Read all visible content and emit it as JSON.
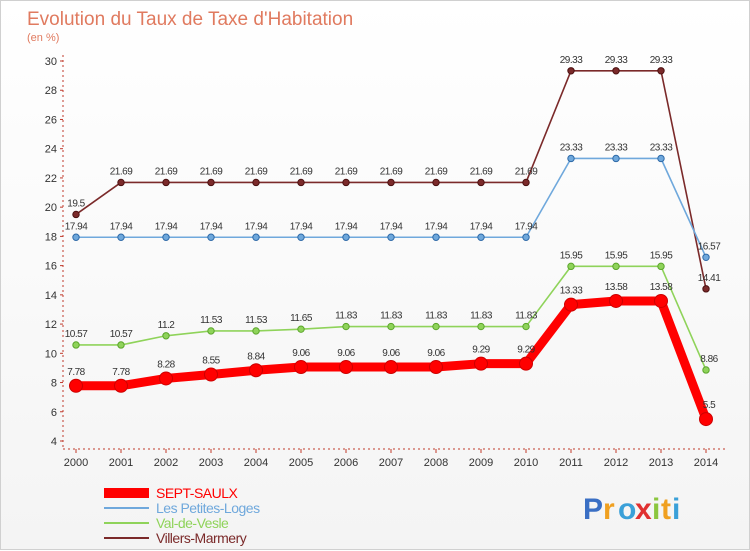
{
  "chart_data": {
    "type": "line",
    "title": "Evolution du Taux de Taxe d'Habitation",
    "subtitle": "(en %)",
    "x": [
      2000,
      2001,
      2002,
      2003,
      2004,
      2005,
      2006,
      2007,
      2008,
      2009,
      2010,
      2011,
      2012,
      2013,
      2014
    ],
    "ylim": [
      4,
      30
    ],
    "yticks": [
      4,
      6,
      8,
      10,
      12,
      14,
      16,
      18,
      20,
      22,
      24,
      26,
      28,
      30
    ],
    "grid": false,
    "legend_position": "bottom-left",
    "series": [
      {
        "name": "SEPT-SAULX",
        "color": "#ff0000",
        "values": [
          7.78,
          7.78,
          8.28,
          8.55,
          8.84,
          9.06,
          9.06,
          9.06,
          9.06,
          9.29,
          9.29,
          13.33,
          13.58,
          13.58,
          5.5
        ],
        "labels": [
          "7.78",
          "7.78",
          "8.28",
          "8.55",
          "8.84",
          "9.06",
          "9.06",
          "9.06",
          "9.06",
          "9.29",
          "9.29",
          "13.33",
          "13.58",
          "13.58",
          "5.5"
        ]
      },
      {
        "name": "Les Petites-Loges",
        "color": "#6fa8dc",
        "values": [
          17.94,
          17.94,
          17.94,
          17.94,
          17.94,
          17.94,
          17.94,
          17.94,
          17.94,
          17.94,
          17.94,
          23.33,
          23.33,
          23.33,
          16.57
        ],
        "labels": [
          "17.94",
          "17.94",
          "17.94",
          "17.94",
          "17.94",
          "17.94",
          "17.94",
          "17.94",
          "17.94",
          "17.94",
          "17.94",
          "23.33",
          "23.33",
          "23.33",
          "16.57"
        ]
      },
      {
        "name": "Val-de-Vesle",
        "color": "#8fd35a",
        "values": [
          10.57,
          10.57,
          11.2,
          11.53,
          11.53,
          11.65,
          11.83,
          11.83,
          11.83,
          11.83,
          11.83,
          15.95,
          15.95,
          15.95,
          8.86
        ],
        "labels": [
          "10.57",
          "10.57",
          "11.2",
          "11.53",
          "11.53",
          "11.65",
          "11.83",
          "11.83",
          "11.83",
          "11.83",
          "11.83",
          "15.95",
          "15.95",
          "15.95",
          "8.86"
        ]
      },
      {
        "name": "Villers-Marmery",
        "color": "#7b2a2a",
        "values": [
          19.5,
          21.69,
          21.69,
          21.69,
          21.69,
          21.69,
          21.69,
          21.69,
          21.69,
          21.69,
          21.69,
          29.33,
          29.33,
          29.33,
          14.41
        ],
        "labels": [
          "19.5",
          "21.69",
          "21.69",
          "21.69",
          "21.69",
          "21.69",
          "21.69",
          "21.69",
          "21.69",
          "21.69",
          "21.69",
          "29.33",
          "29.33",
          "29.33",
          "14.41"
        ]
      }
    ]
  },
  "branding": {
    "logo_letters": [
      "P",
      "r",
      "o",
      "x",
      "i",
      "t",
      "i"
    ],
    "logo_colors": [
      "#3a6fc4",
      "#f0a020",
      "#3aa0d8",
      "#e03030",
      "#8cc63f",
      "#f0a020",
      "#3aa0d8"
    ]
  }
}
